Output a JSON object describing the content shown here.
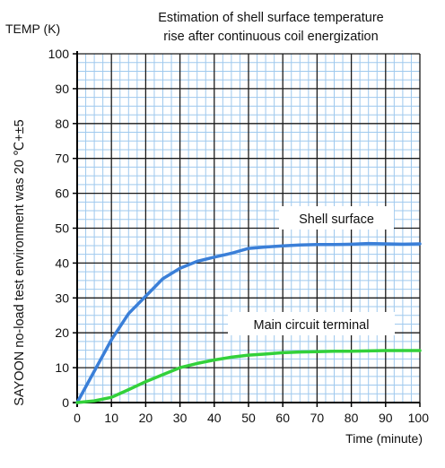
{
  "chart_data": {
    "type": "line",
    "title_lines": [
      "Estimation of shell surface temperature",
      "rise after continuous coil energization"
    ],
    "ylabel": "TEMP (K)",
    "xlabel": "Time (minute)",
    "side_note": "SAYOON no-load test environment was 20 ℃+±5",
    "xlim": [
      0,
      100
    ],
    "ylim": [
      0,
      100
    ],
    "x_major_ticks": [
      0,
      10,
      20,
      30,
      40,
      50,
      60,
      70,
      80,
      90,
      100
    ],
    "y_major_ticks": [
      0,
      10,
      20,
      30,
      40,
      50,
      60,
      70,
      80,
      90,
      100
    ],
    "x_tick_labels": [
      "0",
      "10",
      "20",
      "30",
      "40",
      "50",
      "60",
      "70",
      "80",
      "90",
      "100"
    ],
    "y_tick_labels": [
      "0",
      "10",
      "20",
      "30",
      "40",
      "50",
      "60",
      "70",
      "80",
      "90",
      "100"
    ],
    "minor_grid_step": 2.5,
    "grid": true,
    "series": [
      {
        "name": "Shell surface",
        "color": "#3a7fd8",
        "points": [
          [
            0,
            0
          ],
          [
            5,
            9
          ],
          [
            10,
            18
          ],
          [
            15,
            25.5
          ],
          [
            20,
            30.5
          ],
          [
            25,
            35.5
          ],
          [
            30,
            38.5
          ],
          [
            35,
            40.5
          ],
          [
            40,
            41.7
          ],
          [
            45,
            42.8
          ],
          [
            50,
            44.2
          ],
          [
            55,
            44.6
          ],
          [
            60,
            44.9
          ],
          [
            65,
            45.2
          ],
          [
            70,
            45.3
          ],
          [
            75,
            45.3
          ],
          [
            80,
            45.4
          ],
          [
            85,
            45.6
          ],
          [
            90,
            45.5
          ],
          [
            95,
            45.4
          ],
          [
            100,
            45.5
          ]
        ]
      },
      {
        "name": "Main circuit terminal",
        "color": "#33d13a",
        "points": [
          [
            0,
            0
          ],
          [
            5,
            0.5
          ],
          [
            10,
            1.5
          ],
          [
            15,
            3.7
          ],
          [
            20,
            6
          ],
          [
            25,
            8
          ],
          [
            30,
            10
          ],
          [
            35,
            11.2
          ],
          [
            40,
            12.2
          ],
          [
            45,
            13
          ],
          [
            50,
            13.6
          ],
          [
            55,
            13.9
          ],
          [
            60,
            14.3
          ],
          [
            65,
            14.5
          ],
          [
            70,
            14.6
          ],
          [
            75,
            14.7
          ],
          [
            80,
            14.7
          ],
          [
            85,
            14.8
          ],
          [
            90,
            14.9
          ],
          [
            95,
            14.9
          ],
          [
            100,
            14.9
          ]
        ]
      }
    ]
  }
}
